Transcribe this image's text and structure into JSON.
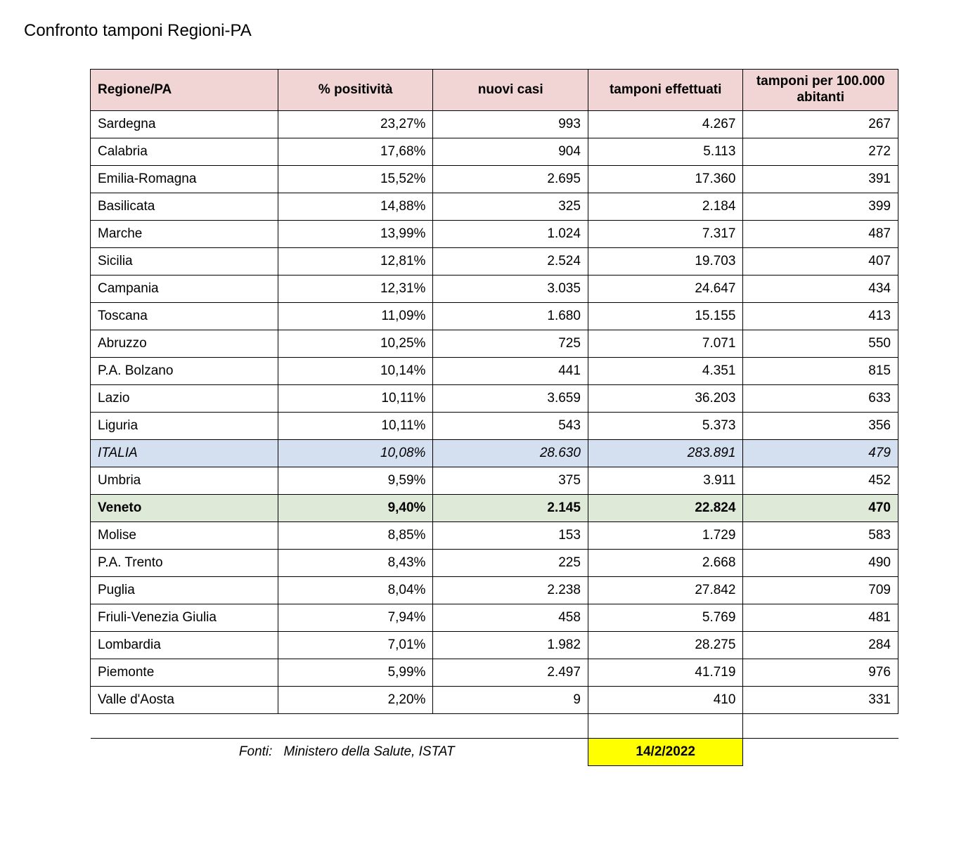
{
  "title": "Confronto tamponi Regioni-PA",
  "table": {
    "columns": [
      "Regione/PA",
      "% positività",
      "nuovi casi",
      "tamponi effettuati",
      "tamponi per 100.000 abitanti"
    ],
    "column_align": [
      "left",
      "right",
      "right",
      "right",
      "right"
    ],
    "header_bg": "#f1d4d4",
    "highlight_rows": {
      "italia_bg": "#d4e0ef",
      "veneto_bg": "#dfe9d7"
    },
    "rows": [
      {
        "region": "Sardegna",
        "pos": "23,27%",
        "casi": "993",
        "tamponi": "4.267",
        "per100k": "267"
      },
      {
        "region": "Calabria",
        "pos": "17,68%",
        "casi": "904",
        "tamponi": "5.113",
        "per100k": "272"
      },
      {
        "region": "Emilia-Romagna",
        "pos": "15,52%",
        "casi": "2.695",
        "tamponi": "17.360",
        "per100k": "391"
      },
      {
        "region": "Basilicata",
        "pos": "14,88%",
        "casi": "325",
        "tamponi": "2.184",
        "per100k": "399"
      },
      {
        "region": "Marche",
        "pos": "13,99%",
        "casi": "1.024",
        "tamponi": "7.317",
        "per100k": "487"
      },
      {
        "region": "Sicilia",
        "pos": "12,81%",
        "casi": "2.524",
        "tamponi": "19.703",
        "per100k": "407"
      },
      {
        "region": "Campania",
        "pos": "12,31%",
        "casi": "3.035",
        "tamponi": "24.647",
        "per100k": "434"
      },
      {
        "region": "Toscana",
        "pos": "11,09%",
        "casi": "1.680",
        "tamponi": "15.155",
        "per100k": "413"
      },
      {
        "region": "Abruzzo",
        "pos": "10,25%",
        "casi": "725",
        "tamponi": "7.071",
        "per100k": "550"
      },
      {
        "region": "P.A. Bolzano",
        "pos": "10,14%",
        "casi": "441",
        "tamponi": "4.351",
        "per100k": "815"
      },
      {
        "region": "Lazio",
        "pos": "10,11%",
        "casi": "3.659",
        "tamponi": "36.203",
        "per100k": "633"
      },
      {
        "region": "Liguria",
        "pos": "10,11%",
        "casi": "543",
        "tamponi": "5.373",
        "per100k": "356"
      },
      {
        "region": "ITALIA",
        "pos": "10,08%",
        "casi": "28.630",
        "tamponi": "283.891",
        "per100k": "479",
        "style": "italia"
      },
      {
        "region": "Umbria",
        "pos": "9,59%",
        "casi": "375",
        "tamponi": "3.911",
        "per100k": "452"
      },
      {
        "region": "Veneto",
        "pos": "9,40%",
        "casi": "2.145",
        "tamponi": "22.824",
        "per100k": "470",
        "style": "veneto"
      },
      {
        "region": "Molise",
        "pos": "8,85%",
        "casi": "153",
        "tamponi": "1.729",
        "per100k": "583"
      },
      {
        "region": "P.A. Trento",
        "pos": "8,43%",
        "casi": "225",
        "tamponi": "2.668",
        "per100k": "490"
      },
      {
        "region": "Puglia",
        "pos": "8,04%",
        "casi": "2.238",
        "tamponi": "27.842",
        "per100k": "709"
      },
      {
        "region": "Friuli-Venezia Giulia",
        "pos": "7,94%",
        "casi": "458",
        "tamponi": "5.769",
        "per100k": "481"
      },
      {
        "region": "Lombardia",
        "pos": "7,01%",
        "casi": "1.982",
        "tamponi": "28.275",
        "per100k": "284"
      },
      {
        "region": "Piemonte",
        "pos": "5,99%",
        "casi": "2.497",
        "tamponi": "41.719",
        "per100k": "976"
      },
      {
        "region": "Valle d'Aosta",
        "pos": "2,20%",
        "casi": "9",
        "tamponi": "410",
        "per100k": "331"
      }
    ]
  },
  "footer": {
    "fonti_label": "Fonti:",
    "fonti_value": "Ministero della Salute, ISTAT",
    "date": "14/2/2022",
    "date_bg": "#ffff00"
  }
}
